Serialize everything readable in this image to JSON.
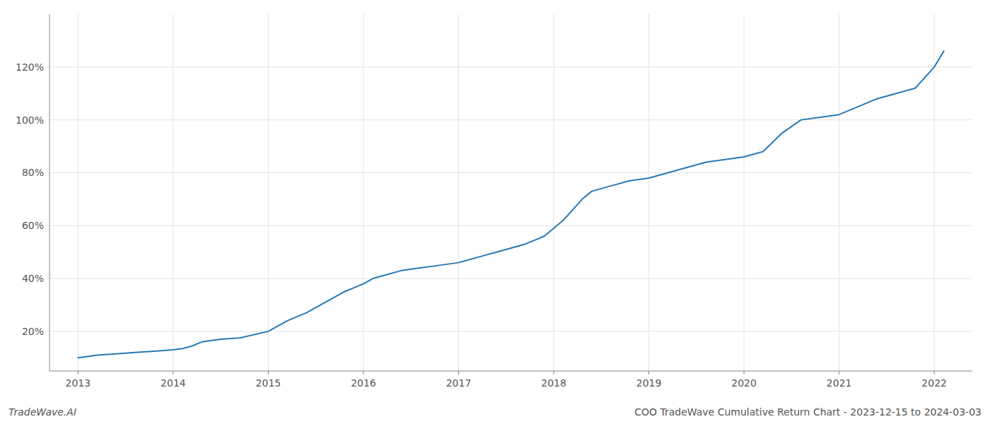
{
  "chart_data": {
    "type": "line",
    "title": "COO TradeWave Cumulative Return Chart - 2023-12-15 to 2024-03-03",
    "annotations": [
      "TradeWave.AI"
    ],
    "color": "#2878b5",
    "grid": true,
    "x": [
      2013.0,
      2013.1,
      2013.2,
      2013.4,
      2013.6,
      2013.8,
      2014.0,
      2014.1,
      2014.2,
      2014.3,
      2014.5,
      2014.7,
      2015.0,
      2015.2,
      2015.4,
      2015.6,
      2015.8,
      2016.0,
      2016.1,
      2016.2,
      2016.4,
      2016.6,
      2016.8,
      2017.0,
      2017.05,
      2017.1,
      2017.15,
      2017.2,
      2017.3,
      2017.4,
      2017.5,
      2017.6,
      2017.7,
      2017.8,
      2017.9,
      2018.0,
      2018.1,
      2018.2,
      2018.3,
      2018.4,
      2018.6,
      2018.8,
      2019.0,
      2019.2,
      2019.4,
      2019.6,
      2019.8,
      2020.0,
      2020.2,
      2020.4,
      2020.6,
      2020.8,
      2021.0,
      2021.2,
      2021.4,
      2021.6,
      2021.8,
      2022.0,
      2022.1
    ],
    "values": [
      10,
      10.5,
      11,
      11.5,
      12,
      12.5,
      13,
      13.5,
      14.5,
      16,
      17,
      17.5,
      20,
      24,
      27,
      31,
      35,
      38,
      40,
      41,
      43,
      44,
      45,
      46,
      46.5,
      47,
      47.5,
      48,
      49,
      50,
      51,
      52,
      53,
      54.5,
      56,
      59,
      62,
      66,
      70,
      73,
      75,
      77,
      78,
      80,
      82,
      84,
      85,
      86,
      88,
      95,
      100,
      101,
      102,
      105,
      108,
      110,
      112,
      120,
      126
    ],
    "xlim": [
      2012.7,
      2022.4
    ],
    "xticks": [
      2013,
      2014,
      2015,
      2016,
      2017,
      2018,
      2019,
      2020,
      2021,
      2022
    ],
    "ylim": [
      5,
      140
    ],
    "yticks": [
      {
        "value": 20,
        "label": "20%"
      },
      {
        "value": 40,
        "label": "40%"
      },
      {
        "value": 60,
        "label": "60%"
      },
      {
        "value": 80,
        "label": "80%"
      },
      {
        "value": 100,
        "label": "100%"
      },
      {
        "value": 120,
        "label": "120%"
      }
    ]
  }
}
